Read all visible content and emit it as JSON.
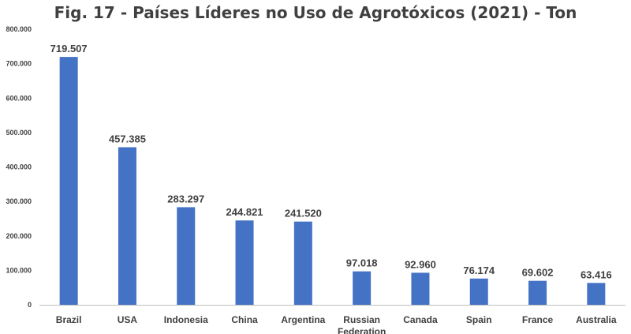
{
  "chart_data": {
    "type": "bar",
    "title": "Fig. 17 - Países Líderes no Uso de Agrotóxicos (2021) - Ton",
    "xlabel": "",
    "ylabel": "",
    "categories": [
      "Brazil",
      "USA",
      "Indonesia",
      "China",
      "Argentina",
      "Russian Federation",
      "Canada",
      "Spain",
      "France",
      "Australia"
    ],
    "values": [
      719507,
      457385,
      283297,
      244821,
      241520,
      97018,
      92960,
      76174,
      69602,
      63416
    ],
    "value_labels": [
      "719.507",
      "457.385",
      "283.297",
      "244.821",
      "241.520",
      "97.018",
      "92.960",
      "76.174",
      "69.602",
      "63.416"
    ],
    "ylim": [
      0,
      800000
    ],
    "yticks": [
      0,
      100000,
      200000,
      300000,
      400000,
      500000,
      600000,
      700000,
      800000
    ],
    "ytick_labels": [
      "0",
      "100.000",
      "200.000",
      "300.000",
      "400.000",
      "500.000",
      "600.000",
      "700.000",
      "800.000"
    ],
    "grid": false,
    "legend": "none",
    "bar_color": "#4472c4"
  }
}
